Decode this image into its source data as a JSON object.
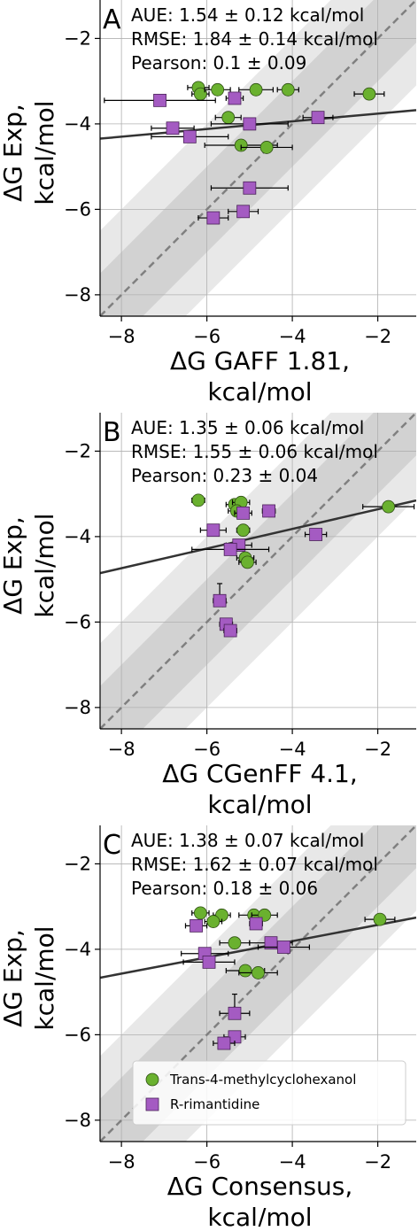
{
  "chart_data": [
    {
      "type": "scatter",
      "panel_label": "A",
      "stats": [
        "AUE: 1.54 ± 0.12 kcal/mol",
        "RMSE: 1.84 ± 0.14 kcal/mol",
        "Pearson: 0.1 ± 0.09"
      ],
      "xlabel": [
        "ΔG GAFF 1.81,",
        "kcal/mol"
      ],
      "ylabel": [
        "ΔG Exp,",
        "kcal/mol"
      ],
      "xlim": [
        -8.5,
        -1.1
      ],
      "ylim": [
        -8.5,
        -1.1
      ],
      "xticks": [
        -8,
        -6,
        -4,
        -2
      ],
      "yticks": [
        -2,
        -4,
        -6,
        -8
      ],
      "fit_line": {
        "slope": 0.09,
        "intercept": -3.58
      },
      "series": [
        {
          "name": "Trans-4-methylcyclohexanol",
          "marker": "circle",
          "color": "#6ab12f",
          "points": [
            {
              "x": -6.2,
              "y": -3.15,
              "xerr": 0.25
            },
            {
              "x": -6.15,
              "y": -3.3,
              "xerr": 0.2
            },
            {
              "x": -5.75,
              "y": -3.2,
              "xerr": 0.3
            },
            {
              "x": -4.85,
              "y": -3.2,
              "xerr": 0.4
            },
            {
              "x": -4.1,
              "y": -3.2,
              "xerr": 0.25
            },
            {
              "x": -2.2,
              "y": -3.3,
              "xerr": 0.35
            },
            {
              "x": -5.5,
              "y": -3.85,
              "xerr": 0.3
            },
            {
              "x": -5.2,
              "y": -4.5,
              "xerr": 0.85
            },
            {
              "x": -4.6,
              "y": -4.55,
              "xerr": 0.6
            }
          ]
        },
        {
          "name": "R-rimantidine",
          "marker": "square",
          "color": "#a45bc2",
          "points": [
            {
              "x": -7.1,
              "y": -3.45,
              "xerr": 1.3
            },
            {
              "x": -5.35,
              "y": -3.4,
              "xerr": 0.2
            },
            {
              "x": -6.8,
              "y": -4.1,
              "xerr": 0.5
            },
            {
              "x": -6.4,
              "y": -4.3,
              "xerr": 0.9
            },
            {
              "x": -5.0,
              "y": -4.0,
              "xerr": 0.9
            },
            {
              "x": -3.4,
              "y": -3.85,
              "xerr": 0.35
            },
            {
              "x": -5.0,
              "y": -5.5,
              "xerr": 0.9
            },
            {
              "x": -5.15,
              "y": -6.05,
              "xerr": 0.35
            },
            {
              "x": -5.85,
              "y": -6.2,
              "xerr": 0.35
            }
          ]
        }
      ]
    },
    {
      "type": "scatter",
      "panel_label": "B",
      "stats": [
        "AUE: 1.35 ± 0.06 kcal/mol",
        "RMSE: 1.55 ± 0.06 kcal/mol",
        "Pearson: 0.23 ± 0.04"
      ],
      "xlabel": [
        "ΔG CGenFF 4.1,",
        "kcal/mol"
      ],
      "ylabel": [
        "ΔG Exp,",
        "kcal/mol"
      ],
      "xlim": [
        -8.5,
        -1.1
      ],
      "ylim": [
        -8.5,
        -1.1
      ],
      "xticks": [
        -8,
        -6,
        -4,
        -2
      ],
      "yticks": [
        -2,
        -4,
        -6,
        -8
      ],
      "fit_line": {
        "slope": 0.23,
        "intercept": -2.9
      },
      "series": [
        {
          "name": "Trans-4-methylcyclohexanol",
          "marker": "circle",
          "color": "#6ab12f",
          "points": [
            {
              "x": -6.2,
              "y": -3.15,
              "xerr": 0.15
            },
            {
              "x": -5.35,
              "y": -3.25,
              "xerr": 0.2
            },
            {
              "x": -5.2,
              "y": -3.2,
              "xerr": 0.2
            },
            {
              "x": -5.3,
              "y": -3.4,
              "xerr": 0.2
            },
            {
              "x": -1.75,
              "y": -3.3,
              "xerr": 0.6
            },
            {
              "x": -5.15,
              "y": -3.85,
              "xerr": 0.15
            },
            {
              "x": -5.1,
              "y": -4.5,
              "xerr": 0.2
            },
            {
              "x": -5.05,
              "y": -4.6,
              "xerr": 0.2
            }
          ]
        },
        {
          "name": "R-rimantidine",
          "marker": "square",
          "color": "#a45bc2",
          "points": [
            {
              "x": -5.15,
              "y": -3.45,
              "xerr": 0.2
            },
            {
              "x": -4.55,
              "y": -3.4,
              "xerr": 0.15
            },
            {
              "x": -5.85,
              "y": -3.85,
              "xerr": 0.3
            },
            {
              "x": -5.25,
              "y": -4.2,
              "xerr": 0.3
            },
            {
              "x": -5.45,
              "y": -4.3,
              "xerr": 0.9
            },
            {
              "x": -3.45,
              "y": -3.95,
              "xerr": 0.25
            },
            {
              "x": -5.7,
              "y": -5.5,
              "xerr": 0.15,
              "yerr": 0.4
            },
            {
              "x": -5.55,
              "y": -6.05,
              "xerr": 0.15
            },
            {
              "x": -5.45,
              "y": -6.2,
              "xerr": 0.15
            }
          ]
        }
      ]
    },
    {
      "type": "scatter",
      "panel_label": "C",
      "stats": [
        "AUE: 1.38 ± 0.07 kcal/mol",
        "RMSE: 1.62 ± 0.07 kcal/mol",
        "Pearson: 0.18 ± 0.06"
      ],
      "xlabel": [
        "ΔG Consensus,",
        "kcal/mol"
      ],
      "ylabel": [
        "ΔG Exp,",
        "kcal/mol"
      ],
      "xlim": [
        -8.5,
        -1.1
      ],
      "ylim": [
        -8.5,
        -1.1
      ],
      "xticks": [
        -8,
        -6,
        -4,
        -2
      ],
      "yticks": [
        -2,
        -4,
        -6,
        -8
      ],
      "legend_position": "lower-right",
      "fit_line": {
        "slope": 0.19,
        "intercept": -3.05
      },
      "series": [
        {
          "name": "Trans-4-methylcyclohexanol",
          "marker": "circle",
          "color": "#6ab12f",
          "points": [
            {
              "x": -6.15,
              "y": -3.15,
              "xerr": 0.2
            },
            {
              "x": -5.65,
              "y": -3.2,
              "xerr": 0.2
            },
            {
              "x": -5.85,
              "y": -3.35,
              "xerr": 0.2
            },
            {
              "x": -4.9,
              "y": -3.2,
              "xerr": 0.35
            },
            {
              "x": -4.65,
              "y": -3.2,
              "xerr": 0.3
            },
            {
              "x": -1.95,
              "y": -3.3,
              "xerr": 0.35
            },
            {
              "x": -5.35,
              "y": -3.85,
              "xerr": 0.35
            },
            {
              "x": -5.1,
              "y": -4.5,
              "xerr": 0.45
            },
            {
              "x": -4.8,
              "y": -4.55,
              "xerr": 0.45
            }
          ]
        },
        {
          "name": "R-rimantidine",
          "marker": "square",
          "color": "#a45bc2",
          "points": [
            {
              "x": -6.25,
              "y": -3.45,
              "xerr": 0.25
            },
            {
              "x": -4.85,
              "y": -3.4,
              "xerr": 0.15
            },
            {
              "x": -6.05,
              "y": -4.1,
              "xerr": 0.55
            },
            {
              "x": -5.95,
              "y": -4.3,
              "xerr": 0.6
            },
            {
              "x": -4.5,
              "y": -3.85,
              "xerr": 0.5
            },
            {
              "x": -4.2,
              "y": -3.95,
              "xerr": 0.6
            },
            {
              "x": -5.35,
              "y": -5.5,
              "xerr": 0.35,
              "yerr": 0.45
            },
            {
              "x": -5.35,
              "y": -6.05,
              "xerr": 0.25
            },
            {
              "x": -5.6,
              "y": -6.2,
              "xerr": 0.25
            }
          ]
        }
      ]
    }
  ]
}
